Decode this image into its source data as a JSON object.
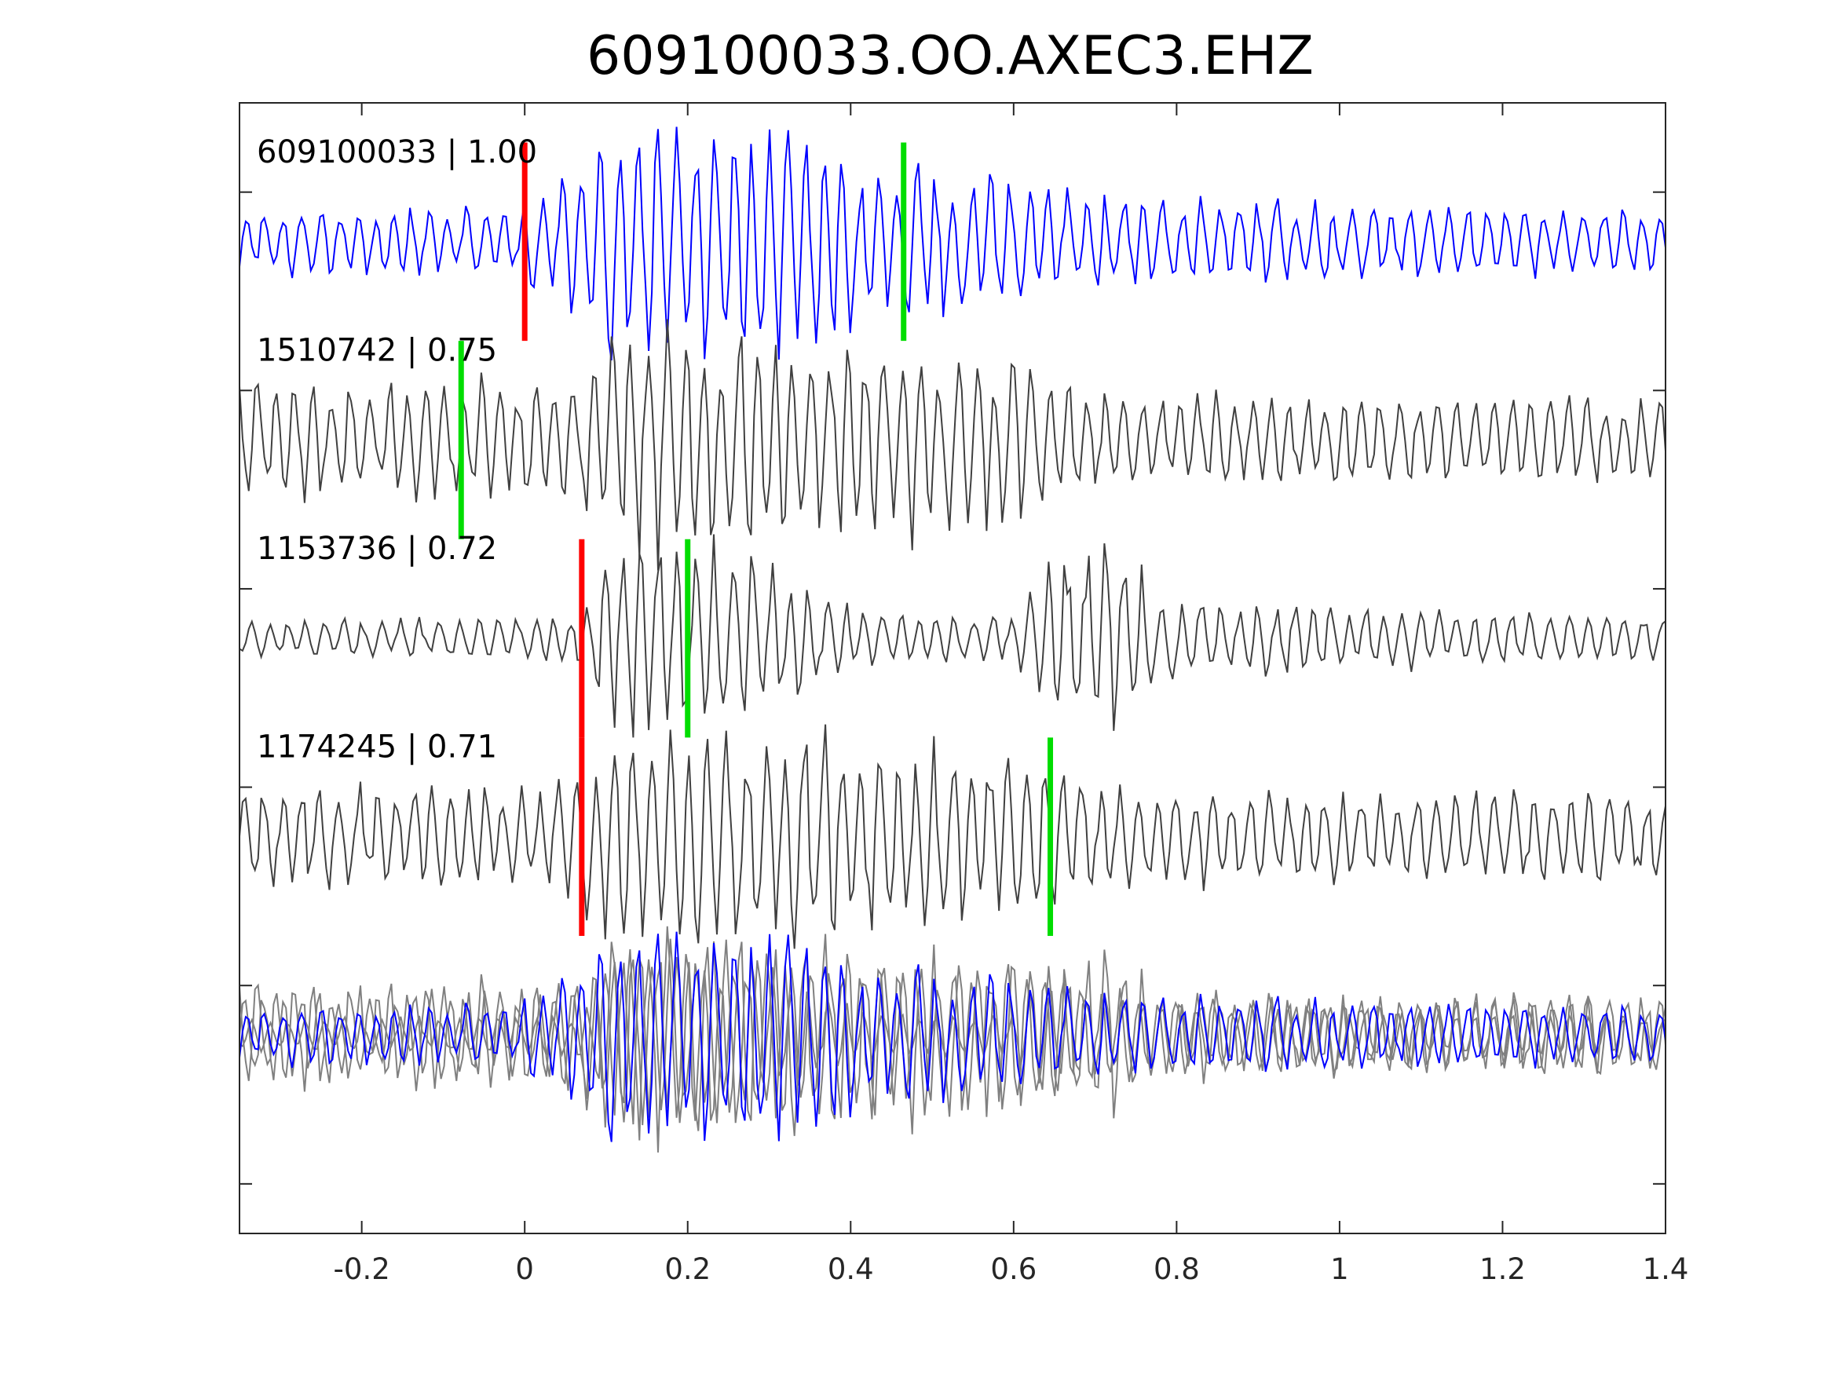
{
  "chart_data": {
    "type": "line",
    "title": "609100033.OO.AXEC3.EHZ",
    "xlabel": "",
    "ylabel": "",
    "xlim": [
      -0.35,
      1.4
    ],
    "ylim": [
      0,
      5.7
    ],
    "grid": false,
    "x_ticks": [
      -0.2,
      0,
      0.2,
      0.4,
      0.6,
      0.8,
      1,
      1.2,
      1.4
    ],
    "x_tick_labels": [
      "-0.2",
      "0",
      "0.2",
      "0.4",
      "0.6",
      "0.8",
      "1",
      "1.2",
      "1.4"
    ],
    "y_ticks": [
      0.25,
      1.25,
      2.25,
      3.25,
      4.25,
      5.25
    ],
    "colors": {
      "master": "#0000ff",
      "template": "#404040",
      "overlay": "#808080",
      "p_pick": "#ff0000",
      "s_pick": "#00dd00",
      "axes": "#262626"
    },
    "series": [
      {
        "label": "609100033 | 1.00",
        "offset": 5,
        "color": "#0000ff",
        "picks": [
          {
            "phase": "P",
            "time": 0.0,
            "color": "#ff0000"
          },
          {
            "phase": "S",
            "time": 0.465,
            "color": "#00dd00"
          }
        ],
        "envelope": [
          [
            -0.35,
            0.15
          ],
          [
            -0.02,
            0.15
          ],
          [
            0.1,
            0.5
          ],
          [
            0.26,
            0.55
          ],
          [
            0.32,
            0.5
          ],
          [
            0.37,
            0.45
          ],
          [
            0.42,
            0.35
          ],
          [
            0.48,
            0.33
          ],
          [
            0.6,
            0.3
          ],
          [
            0.7,
            0.2
          ],
          [
            1.4,
            0.15
          ]
        ]
      },
      {
        "label": "1510742 | 0.75",
        "offset": 4,
        "color": "#404040",
        "picks": [
          {
            "phase": "S",
            "time": -0.078,
            "color": "#00dd00"
          }
        ],
        "envelope": [
          [
            -0.35,
            0.28
          ],
          [
            0.05,
            0.28
          ],
          [
            0.1,
            0.5
          ],
          [
            0.26,
            0.5
          ],
          [
            0.45,
            0.45
          ],
          [
            0.62,
            0.4
          ],
          [
            0.68,
            0.22
          ],
          [
            1.4,
            0.2
          ]
        ]
      },
      {
        "label": "1153736 | 0.72",
        "offset": 3,
        "color": "#404040",
        "picks": [
          {
            "phase": "P",
            "time": 0.07,
            "color": "#ff0000"
          },
          {
            "phase": "S",
            "time": 0.2,
            "color": "#00dd00"
          }
        ],
        "envelope": [
          [
            -0.35,
            0.08
          ],
          [
            0.06,
            0.1
          ],
          [
            0.1,
            0.4
          ],
          [
            0.16,
            0.55
          ],
          [
            0.22,
            0.45
          ],
          [
            0.3,
            0.35
          ],
          [
            0.4,
            0.15
          ],
          [
            0.6,
            0.1
          ],
          [
            0.66,
            0.45
          ],
          [
            0.73,
            0.45
          ],
          [
            0.78,
            0.18
          ],
          [
            1.4,
            0.1
          ]
        ]
      },
      {
        "label": "1174245 | 0.71",
        "offset": 2,
        "color": "#404040",
        "picks": [
          {
            "phase": "P",
            "time": 0.07,
            "color": "#ff0000"
          },
          {
            "phase": "S",
            "time": 0.645,
            "color": "#00dd00"
          }
        ],
        "envelope": [
          [
            -0.35,
            0.22
          ],
          [
            0.06,
            0.25
          ],
          [
            0.1,
            0.5
          ],
          [
            0.3,
            0.5
          ],
          [
            0.5,
            0.42
          ],
          [
            0.65,
            0.4
          ],
          [
            0.7,
            0.22
          ],
          [
            1.4,
            0.2
          ]
        ]
      },
      {
        "label": "",
        "offset": 1,
        "color": "#808080",
        "stack": true,
        "envelope": [
          [
            -0.35,
            0.2
          ],
          [
            0.05,
            0.25
          ],
          [
            0.1,
            0.55
          ],
          [
            0.3,
            0.55
          ],
          [
            0.5,
            0.45
          ],
          [
            0.66,
            0.42
          ],
          [
            0.74,
            0.3
          ],
          [
            0.8,
            0.2
          ],
          [
            1.4,
            0.18
          ]
        ]
      }
    ]
  }
}
